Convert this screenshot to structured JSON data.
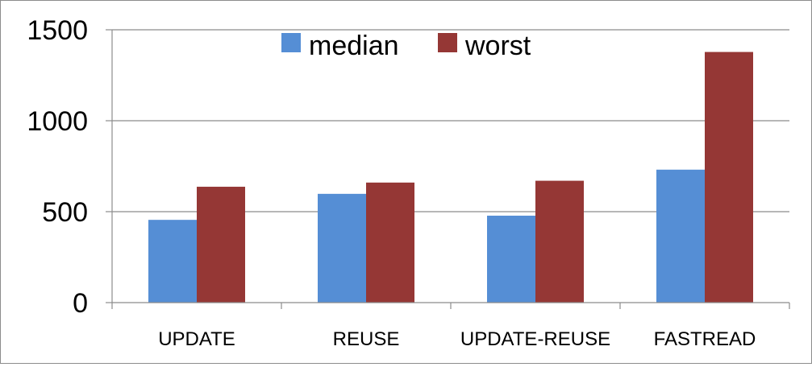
{
  "chart_data": {
    "type": "bar",
    "title": "",
    "xlabel": "",
    "ylabel": "",
    "categories": [
      "UPDATE",
      "REUSE",
      "UPDATE-REUSE",
      "FASTREAD"
    ],
    "series": [
      {
        "name": "median",
        "color": "#558ed5",
        "values": [
          455,
          598,
          478,
          731
        ]
      },
      {
        "name": "worst",
        "color": "#953735",
        "values": [
          637,
          660,
          670,
          1378
        ]
      }
    ],
    "ylim": [
      0,
      1500
    ],
    "yticks": [
      "0",
      "500",
      "1000",
      "1500"
    ],
    "grid": true,
    "legend_position": "top"
  }
}
